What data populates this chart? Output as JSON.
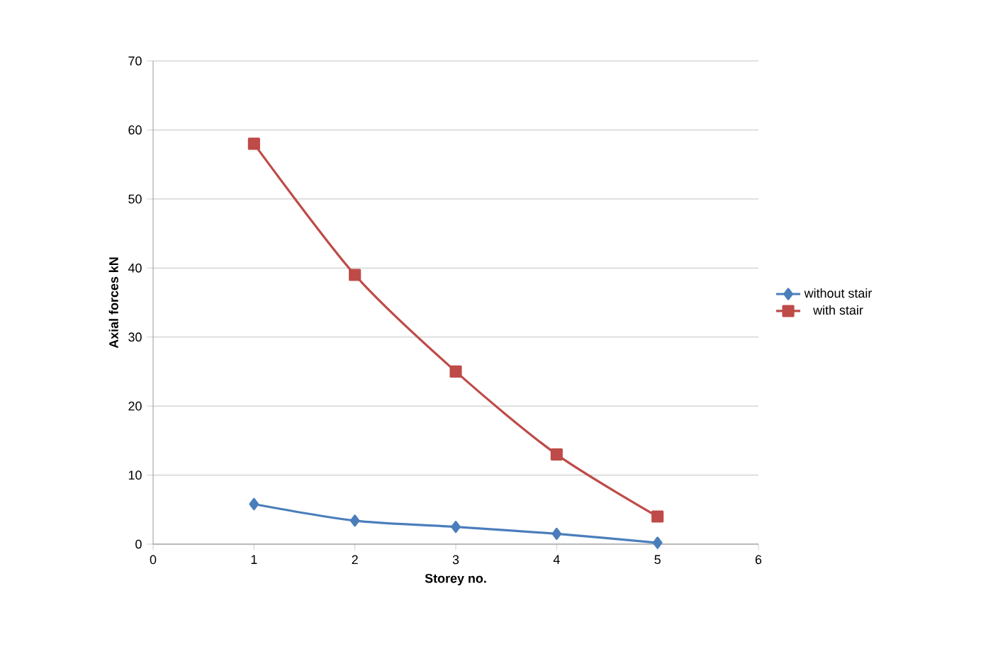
{
  "chart_data": {
    "type": "line",
    "xlabel": "Storey no.",
    "ylabel": "Axial forces kN",
    "x": [
      1,
      2,
      3,
      4,
      5
    ],
    "series": [
      {
        "name": "without stair",
        "color": "#4a7ebb",
        "marker": "diamond",
        "values": [
          5.8,
          3.4,
          2.5,
          1.5,
          0.2
        ]
      },
      {
        "name": "with stair",
        "color": "#be4b48",
        "marker": "square",
        "values": [
          58,
          39,
          25,
          13,
          4
        ]
      }
    ],
    "xlim": [
      0,
      6
    ],
    "xticks": [
      0,
      1,
      2,
      3,
      4,
      5,
      6
    ],
    "ylim": [
      0,
      70
    ],
    "yticks": [
      0,
      10,
      20,
      30,
      40,
      50,
      60,
      70
    ],
    "grid": "y",
    "legend": "right",
    "line_style": "solid"
  }
}
